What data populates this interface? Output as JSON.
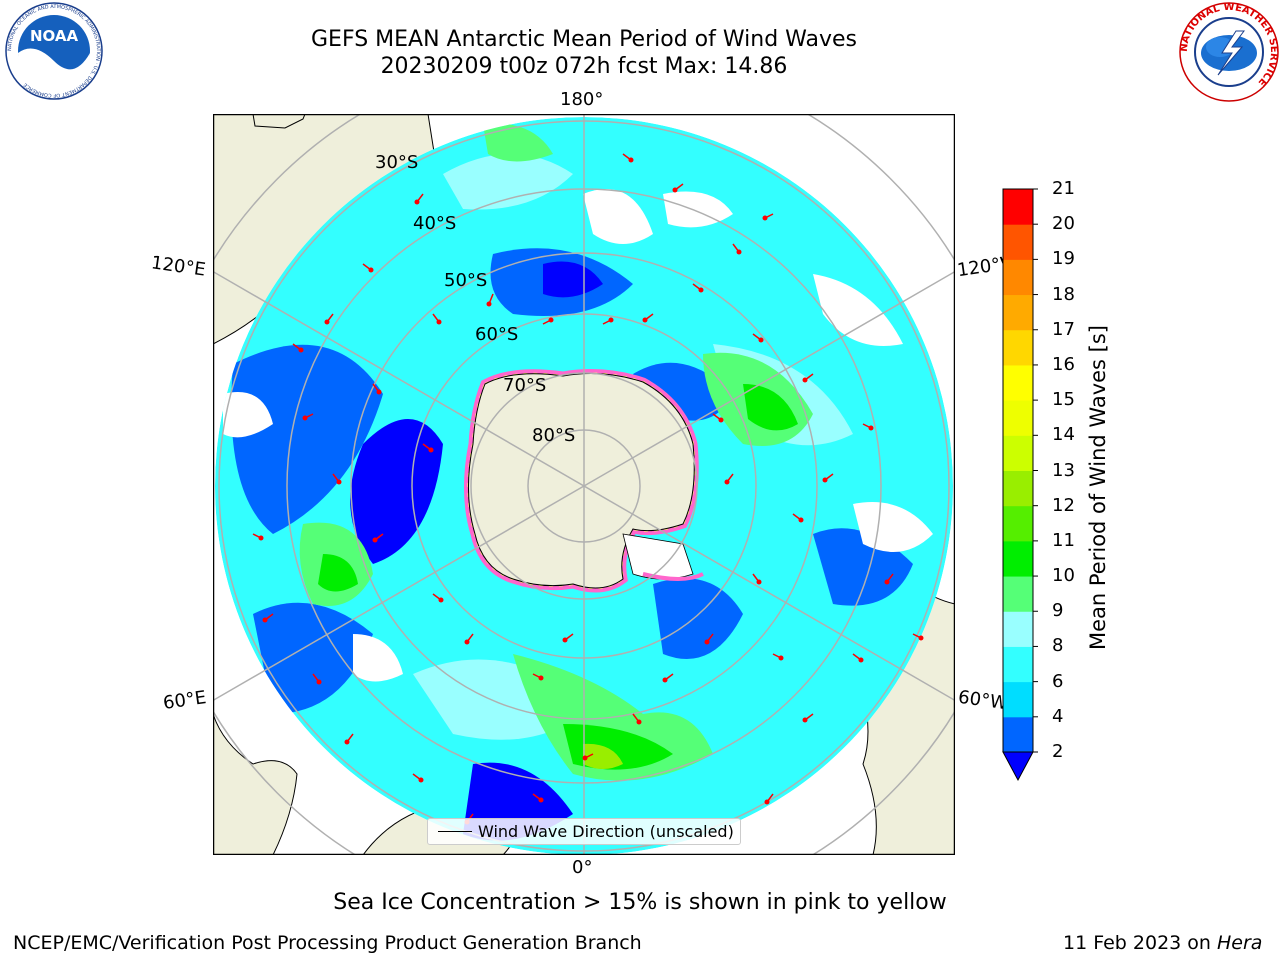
{
  "header": {
    "title_line1": "GEFS MEAN Antarctic Mean Period of Wind Waves",
    "title_line2": "20230209 t00z 072h fcst   Max: 14.86",
    "left_logo_text": "NOAA",
    "left_logo_ring_text": "NATIONAL OCEANIC AND ATMOSPHERIC ADMINISTRATION · U.S. DEPARTMENT OF COMMERCE",
    "right_logo_ring_text": "NATIONAL WEATHER SERVICE"
  },
  "map": {
    "projection": "south-polar-stereographic",
    "longitude_labels": {
      "top": "180°",
      "bottom": "0°",
      "upper_left": "120°E",
      "upper_right": "120°W",
      "lower_left": "60°E",
      "lower_right": "60°W"
    },
    "latitude_labels": [
      "30°S",
      "40°S",
      "50°S",
      "60°S",
      "70°S",
      "80°S"
    ],
    "colors": {
      "land": "#efefdb",
      "ice_pink": "#ff66cc",
      "ice_yellow": "#ffff66",
      "arrow": "#ff0000",
      "grid": "#b0b0b0"
    },
    "legend": "Wind Wave Direction (unscaled)"
  },
  "colorbar": {
    "label": "Mean Period of Wind Waves [s]",
    "ticks": [
      "2",
      "4",
      "6",
      "8",
      "9",
      "10",
      "11",
      "12",
      "13",
      "14",
      "15",
      "16",
      "17",
      "18",
      "19",
      "20",
      "21"
    ],
    "colors": [
      "#0066ff",
      "#00ddff",
      "#33ffff",
      "#99ffff",
      "#55ff77",
      "#00ee00",
      "#55ee00",
      "#99ee00",
      "#ccff00",
      "#eeff00",
      "#ffff00",
      "#ffd700",
      "#ffaa00",
      "#ff8800",
      "#ff5500",
      "#ff0000"
    ],
    "extend_color": "#0000ff"
  },
  "footer": {
    "sea_ice_note": "Sea Ice Concentration > 15% is shown in pink to yellow",
    "left": "NCEP/EMC/Verification Post Processing Product Generation Branch",
    "right_date": "11 Feb 2023 on ",
    "right_host": "Hera"
  }
}
